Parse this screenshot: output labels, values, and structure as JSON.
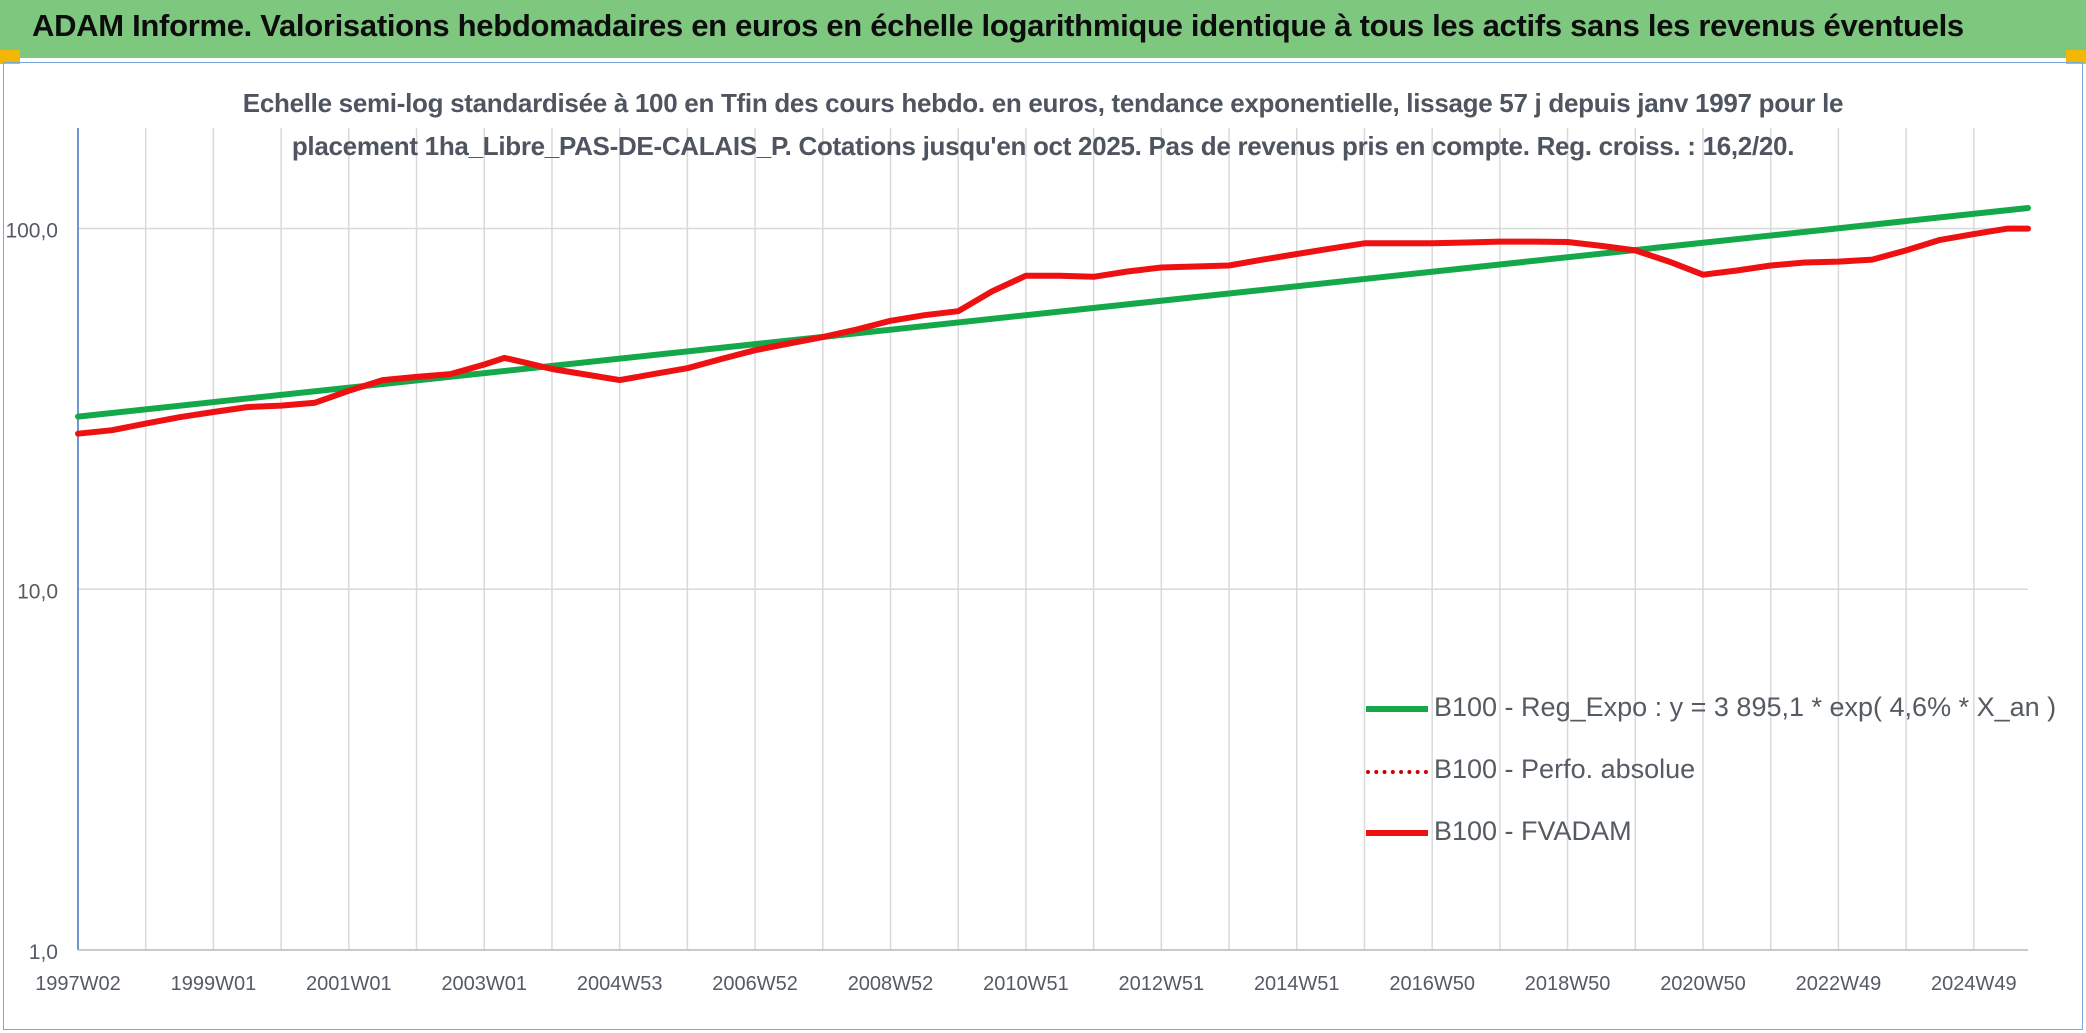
{
  "header": {
    "title": "ADAM Informe. Valorisations hebdomadaires en euros en échelle logarithmique identique à tous les actifs sans les revenus éventuels"
  },
  "colors": {
    "header_bg": "#7dc77e",
    "corner_accent": "#f2b705",
    "trend_line": "#14a84a",
    "series_line": "#ee1111",
    "grid": "#d9d9d9",
    "text": "#555b63"
  },
  "chart_data": {
    "type": "line",
    "title": "",
    "subtitle_lines": [
      "Echelle semi-log standardisée à 100 en Tfin des cours hebdo. en euros, tendance exponentielle, lissage 57 j depuis janv 1997 pour le",
      "placement 1ha_Libre_PAS-DE-CALAIS_P. Cotations jusqu'en oct 2025. Pas de revenus pris en compte. Reg. croiss. : 16,2/20."
    ],
    "xlabel": "",
    "ylabel": "",
    "y_scale": "log",
    "ylim": [
      1,
      190
    ],
    "y_ticks": [
      1,
      10,
      100
    ],
    "y_tick_labels": [
      "1,0",
      "10,0",
      "100,0"
    ],
    "x_range": [
      1997.0,
      2025.8
    ],
    "x_tick_labels": [
      "1997W02",
      "1999W01",
      "2001W01",
      "2003W01",
      "2004W53",
      "2006W52",
      "2008W52",
      "2010W51",
      "2012W51",
      "2014W51",
      "2016W50",
      "2018W50",
      "2020W50",
      "2022W49",
      "2024W49"
    ],
    "x_tick_positions": [
      1997.0,
      1999.0,
      2001.0,
      2003.0,
      2005.0,
      2007.0,
      2009.0,
      2011.0,
      2013.0,
      2015.0,
      2017.0,
      2019.0,
      2021.0,
      2023.0,
      2025.0
    ],
    "grid": true,
    "legend_position": "bottom-right",
    "series": [
      {
        "name": "B100 - Reg_Expo : y = 3 895,1 * exp( 4,6% *  X_an )",
        "style": "solid",
        "color": "#14a84a",
        "x": [
          1997.0,
          2025.8
        ],
        "y": [
          30.1,
          114.0
        ]
      },
      {
        "name": "B100 - Perfo. absolue",
        "style": "dotted",
        "color": "#cc0000",
        "x": [],
        "y": []
      },
      {
        "name": "B100 - FVADAM",
        "style": "solid",
        "color": "#ee1111",
        "x": [
          1997.0,
          1997.5,
          1998.0,
          1998.5,
          1999.0,
          1999.5,
          2000.0,
          2000.5,
          2001.0,
          2001.5,
          2002.0,
          2002.5,
          2003.0,
          2003.3,
          2003.6,
          2004.0,
          2004.5,
          2005.0,
          2005.5,
          2006.0,
          2006.5,
          2007.0,
          2007.5,
          2008.0,
          2008.5,
          2009.0,
          2009.5,
          2010.0,
          2010.5,
          2011.0,
          2011.5,
          2012.0,
          2012.5,
          2013.0,
          2013.5,
          2014.0,
          2014.5,
          2015.0,
          2015.5,
          2016.0,
          2016.5,
          2017.0,
          2017.5,
          2018.0,
          2018.5,
          2019.0,
          2019.5,
          2020.0,
          2020.5,
          2021.0,
          2021.5,
          2022.0,
          2022.5,
          2023.0,
          2023.5,
          2024.0,
          2024.5,
          2025.0,
          2025.5,
          2025.8
        ],
        "y": [
          27.0,
          27.6,
          28.8,
          30.0,
          31.0,
          32.0,
          32.3,
          32.9,
          35.5,
          38.0,
          38.8,
          39.5,
          42.0,
          43.8,
          42.5,
          40.8,
          39.4,
          38.0,
          39.5,
          41.0,
          43.5,
          46.0,
          48.0,
          50.0,
          52.5,
          55.5,
          57.5,
          59.0,
          67.0,
          74.0,
          74.0,
          73.5,
          76.0,
          78.0,
          78.5,
          79.0,
          82.0,
          85.0,
          88.0,
          91.0,
          91.0,
          91.0,
          91.5,
          92.0,
          92.0,
          91.8,
          89.5,
          87.0,
          81.0,
          74.5,
          76.5,
          79.0,
          80.5,
          81.0,
          82.0,
          87.0,
          93.0,
          96.5,
          100.0,
          100.0
        ]
      }
    ]
  }
}
